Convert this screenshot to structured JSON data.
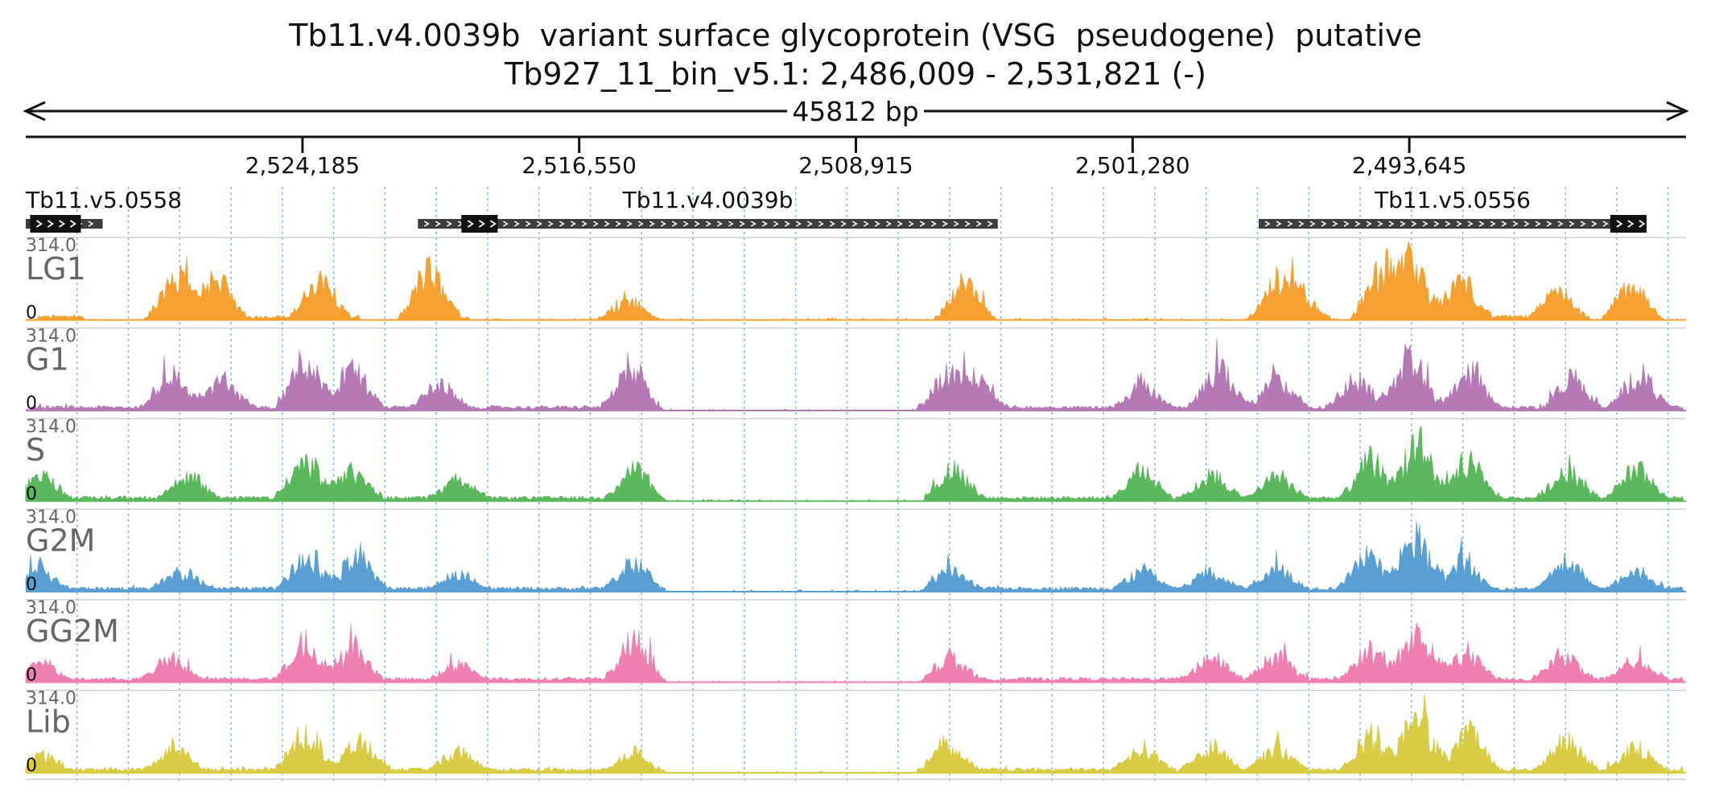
{
  "title": "Tb11.v4.0039b  variant surface glycoprotein (VSG  pseudogene)  putative",
  "subtitle": "Tb927_11_bin_v5.1: 2,486,009 - 2,531,821 (-)",
  "span_label": "45812 bp",
  "colors": {
    "LG1": "#f5a031",
    "G1": "#b57ab6",
    "S": "#5cb85c",
    "G2M": "#5a9fd4",
    "GG2M": "#ef7fb0",
    "Lib": "#d9cc45",
    "gene": "#3d3d3d",
    "cds": "#111111"
  },
  "chart_data": {
    "type": "area",
    "title": "Tb11.v4.0039b  variant surface glycoprotein (VSG  pseudogene)  putative",
    "subtitle": "Tb927_11_bin_v5.1: 2,486,009 - 2,531,821 (-)",
    "xlim": [
      2531821,
      2486009
    ],
    "x_ticks": [
      "2,524,185",
      "2,516,550",
      "2,508,915",
      "2,501,280",
      "2,493,645"
    ],
    "x_tick_values": [
      2524185,
      2516550,
      2508915,
      2501280,
      2493645
    ],
    "ylim": [
      0,
      314.0
    ],
    "y_max_label": "314.0",
    "y_min_label": "0",
    "genes": [
      {
        "name": "Tb11.v5.0558",
        "start": 2531821,
        "end": 2529700,
        "cds": [
          2531700,
          2530300
        ]
      },
      {
        "name": "Tb11.v4.0039b",
        "start": 2521000,
        "end": 2505000,
        "cds": [
          2519800,
          2518800
        ]
      },
      {
        "name": "Tb11.v5.0556",
        "start": 2497800,
        "end": 2487100,
        "cds": [
          2488100,
          2487100
        ]
      }
    ],
    "tracks": [
      {
        "name": "LG1",
        "peaks": [
          {
            "x": 2527700,
            "h": 230
          },
          {
            "x": 2526600,
            "h": 215
          },
          {
            "x": 2523700,
            "h": 190
          },
          {
            "x": 2520700,
            "h": 250
          },
          {
            "x": 2515200,
            "h": 120
          },
          {
            "x": 2505900,
            "h": 180
          },
          {
            "x": 2497300,
            "h": 170
          },
          {
            "x": 2496600,
            "h": 110
          },
          {
            "x": 2494400,
            "h": 240
          },
          {
            "x": 2493600,
            "h": 300
          },
          {
            "x": 2492200,
            "h": 200
          },
          {
            "x": 2489500,
            "h": 140
          },
          {
            "x": 2487500,
            "h": 170
          }
        ],
        "floor": [
          [
            2531500,
            2530200
          ],
          [
            2528000,
            2522600
          ],
          [
            2521200,
            2519600
          ],
          [
            2506500,
            2505200
          ],
          [
            2497900,
            2496200
          ],
          [
            2495100,
            2489000
          ],
          [
            2488300,
            2487000
          ]
        ]
      },
      {
        "name": "G1",
        "peaks": [
          {
            "x": 2527800,
            "h": 180
          },
          {
            "x": 2526400,
            "h": 150
          },
          {
            "x": 2524100,
            "h": 260
          },
          {
            "x": 2522800,
            "h": 210
          },
          {
            "x": 2520400,
            "h": 120
          },
          {
            "x": 2515100,
            "h": 210
          },
          {
            "x": 2506400,
            "h": 170
          },
          {
            "x": 2505600,
            "h": 150
          },
          {
            "x": 2501000,
            "h": 120
          },
          {
            "x": 2498900,
            "h": 200
          },
          {
            "x": 2497300,
            "h": 150
          },
          {
            "x": 2495100,
            "h": 160
          },
          {
            "x": 2493600,
            "h": 290
          },
          {
            "x": 2492000,
            "h": 200
          },
          {
            "x": 2489200,
            "h": 170
          },
          {
            "x": 2487300,
            "h": 190
          }
        ],
        "floor": [
          [
            2531700,
            2514600
          ],
          [
            2507000,
            2490000
          ],
          [
            2489500,
            2486100
          ]
        ]
      },
      {
        "name": "S",
        "peaks": [
          {
            "x": 2531400,
            "h": 120
          },
          {
            "x": 2527300,
            "h": 130
          },
          {
            "x": 2524100,
            "h": 210
          },
          {
            "x": 2522800,
            "h": 150
          },
          {
            "x": 2519900,
            "h": 110
          },
          {
            "x": 2515000,
            "h": 160
          },
          {
            "x": 2506200,
            "h": 160
          },
          {
            "x": 2501000,
            "h": 150
          },
          {
            "x": 2499100,
            "h": 130
          },
          {
            "x": 2497300,
            "h": 130
          },
          {
            "x": 2494700,
            "h": 200
          },
          {
            "x": 2493400,
            "h": 300
          },
          {
            "x": 2492000,
            "h": 190
          },
          {
            "x": 2489300,
            "h": 150
          },
          {
            "x": 2487400,
            "h": 170
          }
        ],
        "floor": [
          [
            2531800,
            2514600
          ],
          [
            2507000,
            2486100
          ]
        ]
      },
      {
        "name": "G2M",
        "peaks": [
          {
            "x": 2531500,
            "h": 110
          },
          {
            "x": 2527500,
            "h": 100
          },
          {
            "x": 2524100,
            "h": 170
          },
          {
            "x": 2522700,
            "h": 170
          },
          {
            "x": 2519900,
            "h": 80
          },
          {
            "x": 2515000,
            "h": 150
          },
          {
            "x": 2506300,
            "h": 100
          },
          {
            "x": 2501000,
            "h": 100
          },
          {
            "x": 2499100,
            "h": 100
          },
          {
            "x": 2497300,
            "h": 120
          },
          {
            "x": 2494800,
            "h": 180
          },
          {
            "x": 2493500,
            "h": 290
          },
          {
            "x": 2492200,
            "h": 150
          },
          {
            "x": 2489300,
            "h": 150
          },
          {
            "x": 2487400,
            "h": 110
          }
        ],
        "floor": [
          [
            2531800,
            2514600
          ],
          [
            2507000,
            2486100
          ]
        ]
      },
      {
        "name": "GG2M",
        "peaks": [
          {
            "x": 2531500,
            "h": 100
          },
          {
            "x": 2527800,
            "h": 120
          },
          {
            "x": 2524100,
            "h": 200
          },
          {
            "x": 2522800,
            "h": 160
          },
          {
            "x": 2519900,
            "h": 80
          },
          {
            "x": 2515000,
            "h": 240
          },
          {
            "x": 2506300,
            "h": 120
          },
          {
            "x": 2499100,
            "h": 120
          },
          {
            "x": 2497300,
            "h": 130
          },
          {
            "x": 2494700,
            "h": 160
          },
          {
            "x": 2493400,
            "h": 250
          },
          {
            "x": 2492100,
            "h": 150
          },
          {
            "x": 2489400,
            "h": 130
          },
          {
            "x": 2487400,
            "h": 100
          }
        ],
        "floor": [
          [
            2531800,
            2514600
          ],
          [
            2507000,
            2486100
          ]
        ]
      },
      {
        "name": "Lib",
        "peaks": [
          {
            "x": 2531400,
            "h": 80
          },
          {
            "x": 2527700,
            "h": 110
          },
          {
            "x": 2524100,
            "h": 210
          },
          {
            "x": 2522600,
            "h": 160
          },
          {
            "x": 2519900,
            "h": 100
          },
          {
            "x": 2515000,
            "h": 100
          },
          {
            "x": 2506400,
            "h": 140
          },
          {
            "x": 2501000,
            "h": 120
          },
          {
            "x": 2499100,
            "h": 130
          },
          {
            "x": 2497300,
            "h": 120
          },
          {
            "x": 2494700,
            "h": 190
          },
          {
            "x": 2493400,
            "h": 300
          },
          {
            "x": 2492000,
            "h": 200
          },
          {
            "x": 2489300,
            "h": 160
          },
          {
            "x": 2487400,
            "h": 120
          }
        ],
        "floor": [
          [
            2531800,
            2514600
          ],
          [
            2507000,
            2486100
          ]
        ]
      }
    ]
  }
}
